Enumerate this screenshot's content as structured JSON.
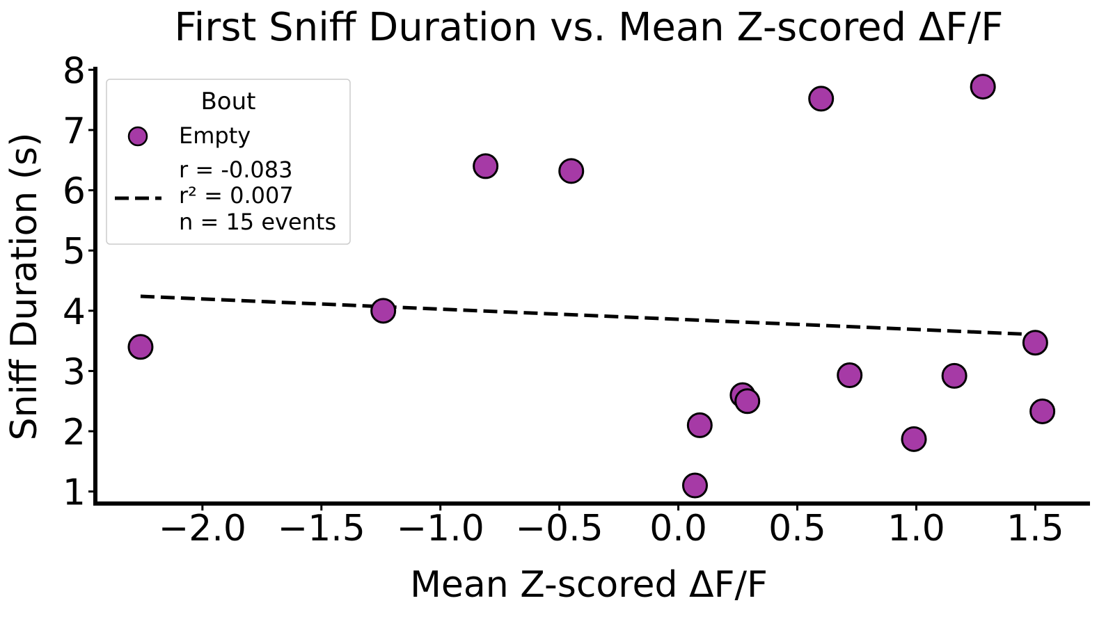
{
  "chart_data": {
    "type": "scatter",
    "title": "First Sniff Duration vs. Mean Z-scored ΔF/F",
    "xlabel": "Mean Z-scored ΔF/F",
    "ylabel": "Sniff Duration (s)",
    "xlim": [
      -2.45,
      1.73
    ],
    "ylim": [
      0.8,
      8.05
    ],
    "xticks": [
      -2.0,
      -1.5,
      -1.0,
      -0.5,
      0.0,
      0.5,
      1.0,
      1.5
    ],
    "xtick_labels": [
      "−2.0",
      "−1.5",
      "−1.0",
      "−0.5",
      "0.0",
      "0.5",
      "1.0",
      "1.5"
    ],
    "yticks": [
      1,
      2,
      3,
      4,
      5,
      6,
      7,
      8
    ],
    "ytick_labels": [
      "1",
      "2",
      "3",
      "4",
      "5",
      "6",
      "7",
      "8"
    ],
    "grid": false,
    "legend_position": "upper-left",
    "legend_title": "Bout",
    "series": [
      {
        "name": "Empty",
        "color": "#a63aa6",
        "points": [
          {
            "x": -2.26,
            "y": 3.4
          },
          {
            "x": -1.24,
            "y": 4.0
          },
          {
            "x": -0.81,
            "y": 6.4
          },
          {
            "x": -0.45,
            "y": 6.32
          },
          {
            "x": 0.6,
            "y": 7.52
          },
          {
            "x": 1.28,
            "y": 7.72
          },
          {
            "x": 0.07,
            "y": 1.1
          },
          {
            "x": 0.09,
            "y": 2.1
          },
          {
            "x": 0.27,
            "y": 2.6
          },
          {
            "x": 0.29,
            "y": 2.5
          },
          {
            "x": 0.72,
            "y": 2.93
          },
          {
            "x": 0.99,
            "y": 1.87
          },
          {
            "x": 1.16,
            "y": 2.92
          },
          {
            "x": 1.5,
            "y": 3.47
          },
          {
            "x": 1.53,
            "y": 2.33
          }
        ]
      }
    ],
    "fit_line": {
      "style": "dashed",
      "color": "#000000",
      "x": [
        -2.26,
        1.53
      ],
      "y": [
        4.24,
        3.6
      ],
      "stats": [
        "r = -0.083",
        "r² = 0.007",
        "n = 15 events"
      ]
    }
  }
}
